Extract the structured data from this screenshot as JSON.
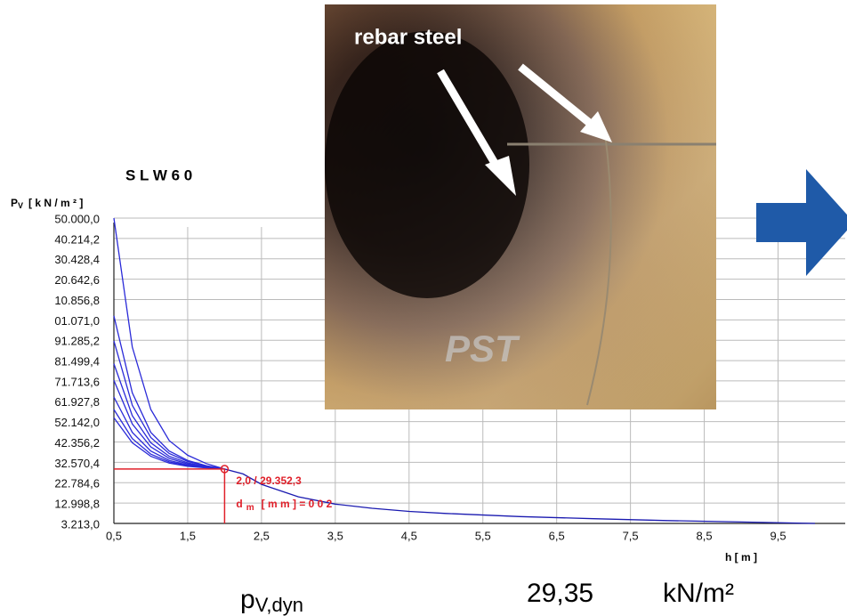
{
  "chart_data": {
    "type": "line",
    "title": "S L W 6 0",
    "y_label": {
      "main": "P",
      "sub": "V",
      "unit": "[ k N / m ² ]"
    },
    "x_label": "h [ m ]",
    "xlim": [
      0.5,
      10
    ],
    "ylim": [
      3213,
      150000
    ],
    "xticks": [
      {
        "value": 0.5,
        "label": "0,5"
      },
      {
        "value": 1.5,
        "label": "1,5"
      },
      {
        "value": 2.5,
        "label": "2,5"
      },
      {
        "value": 3.5,
        "label": "3,5"
      },
      {
        "value": 4.5,
        "label": "4,5"
      },
      {
        "value": 5.5,
        "label": "5,5"
      },
      {
        "value": 6.5,
        "label": "6,5"
      },
      {
        "value": 7.5,
        "label": "7,5"
      },
      {
        "value": 8.5,
        "label": "8,5"
      },
      {
        "value": 9.5,
        "label": "9,5"
      }
    ],
    "yticks": [
      {
        "value": 150000,
        "label": "50.000,0"
      },
      {
        "value": 140214.2,
        "label": "40.214,2"
      },
      {
        "value": 130428.4,
        "label": "30.428,4"
      },
      {
        "value": 120642.6,
        "label": "20.642,6"
      },
      {
        "value": 110856.8,
        "label": "10.856,8"
      },
      {
        "value": 101071,
        "label": "01.071,0"
      },
      {
        "value": 91285.2,
        "label": "91.285,2"
      },
      {
        "value": 81499.4,
        "label": "81.499,4"
      },
      {
        "value": 71713.6,
        "label": "71.713,6"
      },
      {
        "value": 61927.8,
        "label": "61.927,8"
      },
      {
        "value": 52142,
        "label": "52.142,0"
      },
      {
        "value": 42356.2,
        "label": "42.356,2"
      },
      {
        "value": 32570.4,
        "label": "32.570,4"
      },
      {
        "value": 22784.6,
        "label": "22.784,6"
      },
      {
        "value": 12998.8,
        "label": "12.998,8"
      },
      {
        "value": 3213,
        "label": "3.213,0"
      }
    ],
    "grid": true,
    "series": [
      {
        "color": "#2a2ad8",
        "x": [
          0.5,
          0.75,
          1,
          1.25,
          1.5,
          1.75,
          2
        ],
        "values": [
          150000,
          88000,
          58000,
          43000,
          36000,
          32000,
          29352.3
        ]
      },
      {
        "color": "#2a2ad8",
        "x": [
          0.5,
          0.75,
          1,
          1.25,
          1.5,
          1.75,
          2
        ],
        "values": [
          103000,
          66000,
          47000,
          38000,
          33500,
          31000,
          29352.3
        ]
      },
      {
        "color": "#2a2ad8",
        "x": [
          0.5,
          0.75,
          1,
          1.25,
          1.5,
          1.75,
          2
        ],
        "values": [
          91000,
          60000,
          44500,
          36800,
          33000,
          30800,
          29352.3
        ]
      },
      {
        "color": "#2a2ad8",
        "x": [
          0.5,
          0.75,
          1,
          1.25,
          1.5,
          1.75,
          2
        ],
        "values": [
          80000,
          55000,
          42000,
          35500,
          32300,
          30500,
          29352.3
        ]
      },
      {
        "color": "#2a2ad8",
        "x": [
          0.5,
          0.75,
          1,
          1.25,
          1.5,
          1.75,
          2
        ],
        "values": [
          72000,
          51000,
          40000,
          34500,
          31800,
          30300,
          29352.3
        ]
      },
      {
        "color": "#2a2ad8",
        "x": [
          0.5,
          0.75,
          1,
          1.25,
          1.5,
          1.75,
          2
        ],
        "values": [
          64000,
          47000,
          38000,
          33500,
          31300,
          30100,
          29352.3
        ]
      },
      {
        "color": "#2a2ad8",
        "x": [
          0.5,
          0.75,
          1,
          1.25,
          1.5,
          1.75,
          2
        ],
        "values": [
          58000,
          44000,
          36500,
          32800,
          31000,
          30000,
          29352.3
        ]
      },
      {
        "color": "#2a2ad8",
        "x": [
          0.5,
          0.75,
          1,
          1.25,
          1.5,
          1.75,
          2
        ],
        "values": [
          54000,
          42000,
          35500,
          32200,
          30700,
          29900,
          29352.3
        ]
      },
      {
        "color": "#1a1ab0",
        "x": [
          2,
          2.25,
          2.5,
          3,
          3.5,
          4,
          4.5,
          5,
          6,
          7,
          8,
          9,
          10
        ],
        "values": [
          29352.3,
          27000,
          22000,
          16000,
          12500,
          10500,
          9000,
          8000,
          6500,
          5500,
          4600,
          3900,
          3213
        ]
      }
    ],
    "marker": {
      "x": 2,
      "y": 29352.3,
      "color": "#e0202a",
      "label": "2,0 / 29.352,3",
      "note": {
        "symbol": "d",
        "sub": "m",
        "rest": "[ m m ] = 0 0 2"
      }
    },
    "result": {
      "symbol": "p",
      "sub": "V,dyn",
      "value": "29,35",
      "unit": "kN/m²"
    },
    "photo_caption": "rebar steel",
    "photo_logo": "PST"
  }
}
